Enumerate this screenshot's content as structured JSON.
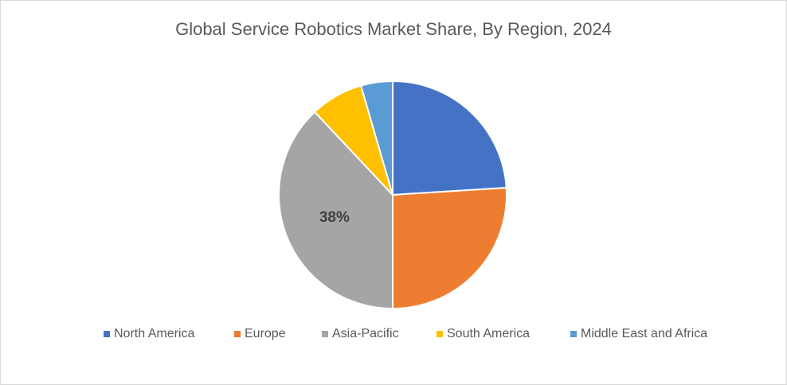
{
  "chart_data": {
    "type": "pie",
    "title": "Global Service Robotics Market Share, By Region, 2024",
    "categories": [
      "North America",
      "Europe",
      "Asia-Pacific",
      "South America",
      "Middle East and Africa"
    ],
    "values": [
      24,
      26,
      38,
      7.5,
      4.5
    ],
    "value_labels": [
      null,
      null,
      "38%",
      null,
      null
    ],
    "colors": [
      "#4472c4",
      "#ed7d31",
      "#a5a5a5",
      "#ffc000",
      "#5b9bd5"
    ],
    "legend": "bottom"
  }
}
